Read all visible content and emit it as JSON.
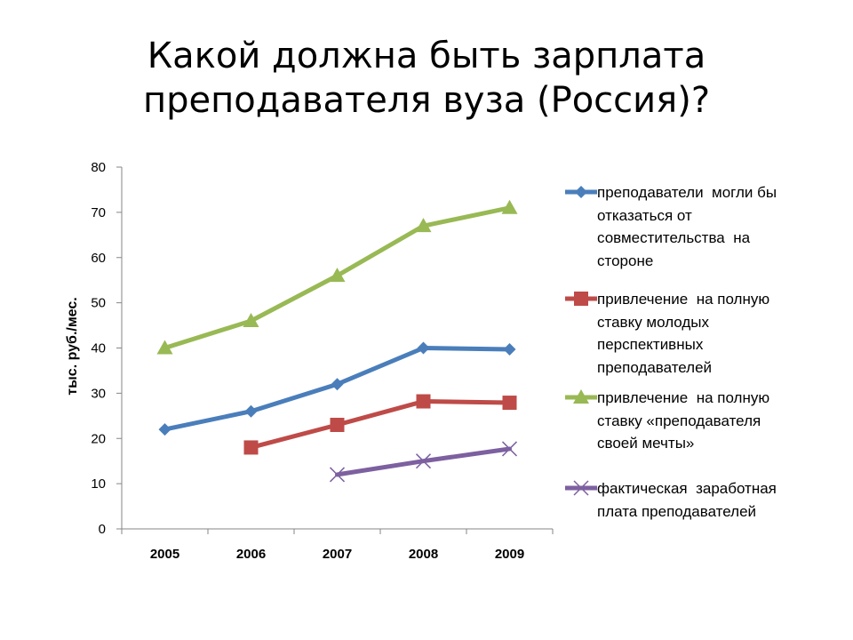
{
  "chart_data": {
    "type": "line",
    "title_lines": [
      "Какой должна быть зарплата",
      "преподавателя вуза (Россия)?"
    ],
    "xlabel": "",
    "ylabel": "тыс. руб./мес.",
    "categories": [
      "2005",
      "2006",
      "2007",
      "2008",
      "2009"
    ],
    "ylim": [
      0,
      80
    ],
    "y_ticks": [
      0,
      10,
      20,
      30,
      40,
      50,
      60,
      70,
      80
    ],
    "grid": false,
    "legend_position": "right",
    "series": [
      {
        "name": "преподаватели могли бы отказаться от совместительства на стороне",
        "label_lines": [
          "преподаватели  могли бы",
          "отказаться от",
          "совместительства  на",
          "стороне"
        ],
        "color": "#4a7ebb",
        "marker": "diamond",
        "values": [
          22,
          26,
          32,
          40,
          39.7
        ]
      },
      {
        "name": "привлечение на полную ставку молодых перспективных преподавателей",
        "label_lines": [
          "привлечение  на полную",
          "ставку молодых",
          "перспективных",
          "преподавателей"
        ],
        "color": "#be4b48",
        "marker": "square",
        "values": [
          null,
          18,
          23,
          28.2,
          27.9
        ]
      },
      {
        "name": "привлечение на полную ставку «преподавателя своей мечты»",
        "label_lines": [
          "привлечение  на полную",
          "ставку «преподавателя",
          "своей мечты»"
        ],
        "color": "#98b954",
        "marker": "triangle",
        "values": [
          40,
          46,
          56,
          67,
          71
        ]
      },
      {
        "name": "фактическая заработная плата преподавателей",
        "label_lines": [
          "фактическая  заработная",
          "плата преподавателей"
        ],
        "color": "#7d60a0",
        "marker": "x",
        "values": [
          null,
          null,
          12,
          15,
          17.7
        ]
      }
    ]
  }
}
